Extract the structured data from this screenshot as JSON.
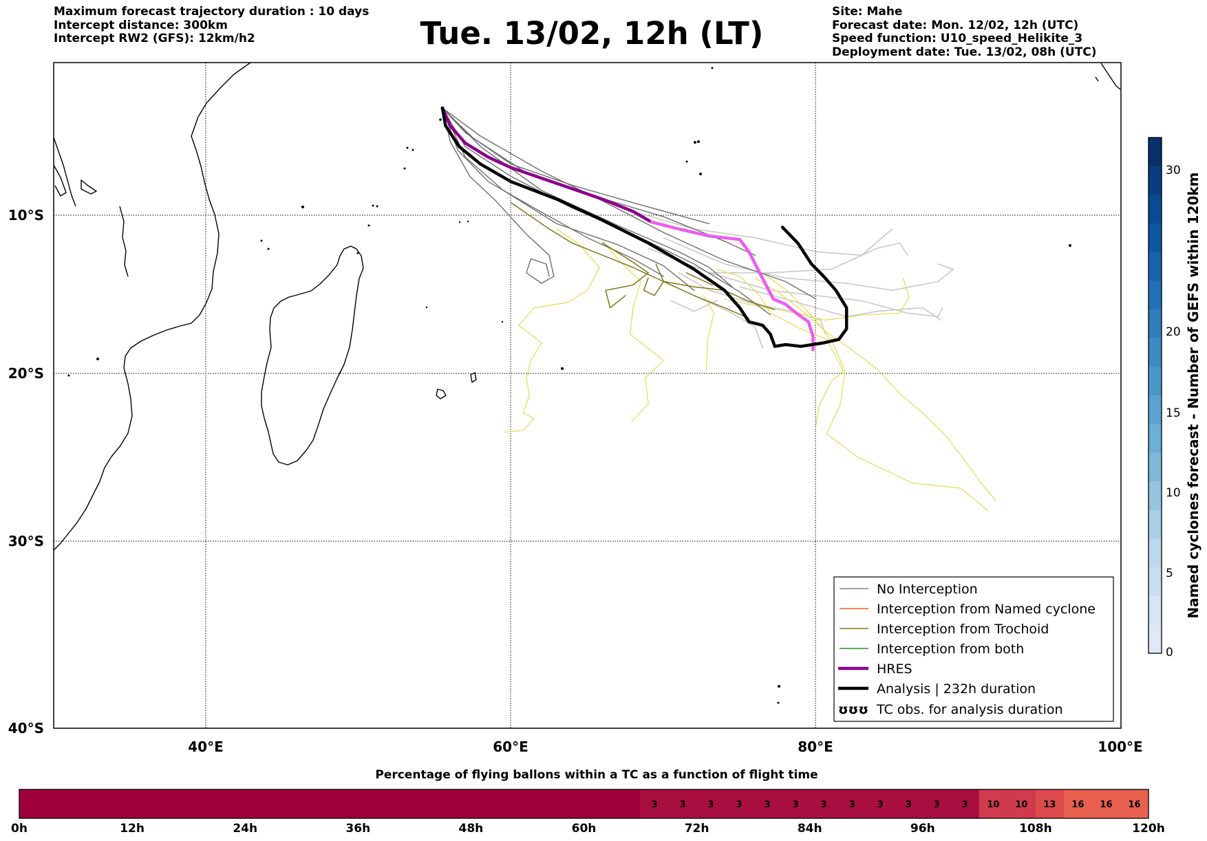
{
  "header": {
    "left_lines": [
      "Maximum forecast trajectory duration : 10 days",
      "Intercept distance: 300km",
      "Intercept RW2 (GFS):  12km/h2"
    ],
    "title": "Tue. 13/02, 12h (LT)",
    "right_lines": [
      "Site: Mahe",
      "Forecast date: Mon. 12/02, 12h (UTC)",
      "Speed function: U10_speed_Helikite_3",
      "Deployment date: Tue. 13/02, 08h (UTC)"
    ]
  },
  "map": {
    "lon_range": [
      30,
      100
    ],
    "lat_range": [
      -40,
      -2
    ],
    "lon_ticks": [
      "40°E",
      "60°E",
      "80°E",
      "100°E"
    ],
    "lat_ticks": [
      "10°S",
      "20°S",
      "30°S",
      "40°S"
    ],
    "site": {
      "name": "Mahe",
      "lon": 55.5,
      "lat": -4.6
    }
  },
  "legend": {
    "entries": [
      {
        "label": "No Interception",
        "color": "#808080",
        "style": "line-thin"
      },
      {
        "label": "Interception from Named cyclone",
        "color": "#ff5a1e",
        "style": "line-thin"
      },
      {
        "label": "Interception from Trochoid",
        "color": "#7d7a14",
        "style": "line-thin"
      },
      {
        "label": "Interception from both",
        "color": "#1e9a1e",
        "style": "line-thin"
      },
      {
        "label": "HRES",
        "color": "#8b008b",
        "style": "line-thick"
      },
      {
        "label": "Analysis | 232h duration",
        "color": "#000000",
        "style": "line-thick"
      },
      {
        "label": "TC obs. for analysis duration",
        "color": "#000000",
        "style": "symbols",
        "symbol": "ʊʊʊ"
      }
    ]
  },
  "colorbar_right": {
    "label": "Named cyclones forecast - Number of GEFS within 120km",
    "ticks": [
      "0",
      "5",
      "10",
      "15",
      "20",
      "30"
    ],
    "colors_top_to_bottom": [
      "#08306b",
      "#083d7f",
      "#084b93",
      "#0c58a1",
      "#1764ab",
      "#2171b5",
      "#2e7ebc",
      "#3a8bc2",
      "#4997c9",
      "#5ba3d0",
      "#6baed6",
      "#7fb9da",
      "#94c4df",
      "#a9cfe5",
      "#bdd7ec",
      "#cadef0",
      "#d6e6f4",
      "#dde9f5"
    ]
  },
  "colorbar_bottom": {
    "title": "Percentage of flying ballons within a TC as a function of flight time",
    "ticks": [
      "0h",
      "12h",
      "24h",
      "36h",
      "48h",
      "60h",
      "72h",
      "84h",
      "96h",
      "108h",
      "120h"
    ],
    "segment_values": [
      "",
      "",
      "",
      "",
      "",
      "",
      "",
      "",
      "",
      "",
      "",
      "",
      "",
      "",
      "",
      "",
      "",
      "",
      "",
      "",
      "",
      "",
      "3",
      "3",
      "3",
      "3",
      "3",
      "3",
      "3",
      "3",
      "3",
      "3",
      "3",
      "3",
      "10",
      "10",
      "13",
      "16",
      "16",
      "16"
    ],
    "color_scale": {
      "0": "#9e003c",
      "3": "#a90f41",
      "10": "#cf3b4c",
      "13": "#dc4a4d",
      "16": "#e9604f"
    }
  },
  "chart_data": {
    "type": "map-trajectories",
    "analysis_track": [
      [
        55.5,
        -4.6
      ],
      [
        55.7,
        -5.6
      ],
      [
        56.6,
        -6.8
      ],
      [
        58,
        -7.8
      ],
      [
        60,
        -8.8
      ],
      [
        63,
        -9.8
      ],
      [
        66,
        -11
      ],
      [
        69,
        -12.3
      ],
      [
        72,
        -13.8
      ],
      [
        74,
        -15
      ],
      [
        75,
        -16
      ],
      [
        75.6,
        -16.8
      ],
      [
        76.5,
        -17
      ],
      [
        77,
        -17.5
      ],
      [
        77.3,
        -18.2
      ],
      [
        78,
        -18.1
      ],
      [
        79,
        -18.2
      ],
      [
        80.5,
        -18
      ],
      [
        81.5,
        -17.8
      ],
      [
        82,
        -17.2
      ],
      [
        82,
        -16
      ],
      [
        81.3,
        -15
      ],
      [
        80.5,
        -14.2
      ],
      [
        79.7,
        -13.5
      ],
      [
        78.8,
        -12.3
      ],
      [
        77.8,
        -11.4
      ]
    ],
    "hres_track": [
      [
        55.5,
        -4.6
      ],
      [
        56,
        -5.6
      ],
      [
        57,
        -6.6
      ],
      [
        58.5,
        -7.4
      ],
      [
        60,
        -8
      ],
      [
        62,
        -8.6
      ],
      [
        64,
        -9.2
      ],
      [
        66,
        -9.8
      ],
      [
        68,
        -10.5
      ],
      [
        69.2,
        -11.1
      ],
      [
        71,
        -11.5
      ],
      [
        73,
        -11.9
      ],
      [
        75,
        -12.1
      ],
      [
        75.6,
        -12.8
      ],
      [
        76.3,
        -14
      ],
      [
        77.2,
        -15.5
      ],
      [
        78,
        -15.8
      ],
      [
        78.7,
        -16.3
      ],
      [
        79.5,
        -16.8
      ],
      [
        79.8,
        -17.6
      ],
      [
        79.8,
        -18.4
      ]
    ],
    "no_interception_tracks": [
      [
        [
          55.5,
          -4.6
        ],
        [
          57,
          -6
        ],
        [
          60,
          -7.8
        ],
        [
          64,
          -9
        ],
        [
          68,
          -10
        ],
        [
          73,
          -11.2
        ]
      ],
      [
        [
          55.5,
          -4.6
        ],
        [
          57.5,
          -6.3
        ],
        [
          61,
          -8.3
        ],
        [
          65,
          -9.5
        ],
        [
          70,
          -10.8
        ],
        [
          74,
          -12.2
        ],
        [
          76,
          -13
        ]
      ],
      [
        [
          55.5,
          -4.6
        ],
        [
          58,
          -6.8
        ],
        [
          62,
          -9.3
        ],
        [
          67,
          -11.3
        ],
        [
          71,
          -12.8
        ],
        [
          73,
          -13.7
        ],
        [
          74.5,
          -14.8
        ]
      ],
      [
        [
          55.5,
          -4.6
        ],
        [
          57,
          -7.4
        ],
        [
          59.5,
          -9.3
        ],
        [
          63,
          -11.2
        ],
        [
          67,
          -12.4
        ],
        [
          70,
          -13.6
        ],
        [
          72,
          -15
        ]
      ],
      [
        [
          55.5,
          -4.6
        ],
        [
          56.5,
          -7
        ],
        [
          58.5,
          -8.8
        ],
        [
          61.5,
          -10.3
        ],
        [
          65,
          -12
        ],
        [
          68,
          -13.2
        ],
        [
          70,
          -14.2
        ]
      ],
      [
        [
          55.5,
          -4.6
        ],
        [
          56,
          -6.5
        ],
        [
          57.3,
          -8.5
        ],
        [
          59,
          -9.9
        ],
        [
          61,
          -11.8
        ],
        [
          62.5,
          -13
        ],
        [
          62.8,
          -14.2
        ],
        [
          62,
          -14.6
        ],
        [
          61,
          -14
        ],
        [
          61.3,
          -13.2
        ],
        [
          62.3,
          -13.5
        ],
        [
          62.5,
          -14.2
        ]
      ],
      [
        [
          55.5,
          -4.6
        ],
        [
          58,
          -6.2
        ],
        [
          62,
          -8.2
        ],
        [
          66,
          -9.9
        ],
        [
          70,
          -11.7
        ],
        [
          74,
          -13.3
        ],
        [
          78,
          -14.5
        ],
        [
          80,
          -15.5
        ]
      ],
      [
        [
          55.5,
          -4.6
        ],
        [
          57,
          -6.8
        ],
        [
          60,
          -8.5
        ],
        [
          64,
          -10.3
        ],
        [
          68,
          -11.8
        ],
        [
          72,
          -13.5
        ],
        [
          75,
          -15.1
        ],
        [
          77,
          -16.4
        ]
      ]
    ],
    "no_interception_light_tracks": [
      [
        [
          68,
          -10.5
        ],
        [
          72,
          -11.5
        ],
        [
          76,
          -12
        ],
        [
          80,
          -12.8
        ],
        [
          83,
          -13
        ],
        [
          85,
          -11.5
        ]
      ],
      [
        [
          70,
          -12
        ],
        [
          74,
          -13.5
        ],
        [
          78,
          -14.3
        ],
        [
          82,
          -14.6
        ],
        [
          85,
          -15
        ],
        [
          88,
          -14.5
        ],
        [
          89,
          -13.8
        ],
        [
          88,
          -13.5
        ]
      ],
      [
        [
          69,
          -12.6
        ],
        [
          73,
          -14
        ],
        [
          77,
          -15
        ],
        [
          80,
          -15.3
        ],
        [
          83,
          -15.6
        ],
        [
          86,
          -16.3
        ],
        [
          88,
          -16.5
        ],
        [
          88.3,
          -16
        ]
      ],
      [
        [
          71,
          -14
        ],
        [
          73,
          -15
        ],
        [
          76,
          -15.8
        ],
        [
          78.5,
          -16.2
        ],
        [
          80.3,
          -16.7
        ],
        [
          80.6,
          -17.5
        ]
      ],
      [
        [
          73,
          -14
        ],
        [
          77,
          -14
        ],
        [
          81,
          -13.8
        ],
        [
          84,
          -12.6
        ],
        [
          85.5,
          -12.3
        ],
        [
          86,
          -13
        ]
      ],
      [
        [
          72,
          -15.3
        ],
        [
          74.5,
          -16.3
        ],
        [
          76,
          -17.1
        ],
        [
          76.5,
          -18.3
        ]
      ],
      [
        [
          70.5,
          -15.6
        ],
        [
          72,
          -16.2
        ],
        [
          73.5,
          -15.6
        ]
      ],
      [
        [
          75,
          -14.8
        ],
        [
          78,
          -15.5
        ],
        [
          80,
          -16
        ],
        [
          82,
          -16.5
        ],
        [
          84,
          -16.2
        ],
        [
          87,
          -16
        ],
        [
          88.2,
          -16.7
        ]
      ]
    ],
    "trochoid_tracks": [
      [
        [
          60,
          -10
        ],
        [
          62.5,
          -11.5
        ],
        [
          64,
          -12.3
        ],
        [
          66,
          -13
        ],
        [
          68,
          -13.7
        ],
        [
          70,
          -14.5
        ],
        [
          72,
          -15.3
        ],
        [
          74,
          -16
        ],
        [
          75.6,
          -16.6
        ]
      ],
      [
        [
          66,
          -12.3
        ],
        [
          68,
          -13.4
        ],
        [
          69,
          -14
        ],
        [
          68,
          -14.7
        ],
        [
          66.2,
          -15
        ],
        [
          66.5,
          -16
        ],
        [
          67.5,
          -15.3
        ]
      ],
      [
        [
          69.5,
          -13.5
        ],
        [
          70,
          -14.5
        ],
        [
          69.4,
          -15.3
        ],
        [
          68.7,
          -15
        ],
        [
          69,
          -14.3
        ]
      ],
      [
        [
          70,
          -14.5
        ],
        [
          72,
          -14.8
        ],
        [
          74,
          -15
        ],
        [
          75.5,
          -15.6
        ],
        [
          77.3,
          -16.1
        ]
      ],
      [
        [
          71.5,
          -14
        ],
        [
          73.2,
          -14.7
        ]
      ]
    ],
    "yellow_tracks": [
      [
        [
          63,
          -11.5
        ],
        [
          64.5,
          -12.4
        ],
        [
          65.8,
          -13.7
        ],
        [
          65,
          -15
        ],
        [
          63.7,
          -15.7
        ],
        [
          61.5,
          -16
        ],
        [
          60.5,
          -17
        ],
        [
          62,
          -18
        ],
        [
          61.3,
          -19
        ],
        [
          61,
          -20
        ],
        [
          61.2,
          -21
        ],
        [
          60.8,
          -22
        ],
        [
          61.5,
          -22.3
        ],
        [
          60.8,
          -23
        ],
        [
          59.6,
          -23.1
        ]
      ],
      [
        [
          66,
          -12.2
        ],
        [
          67.2,
          -13.4
        ],
        [
          68.5,
          -14.5
        ],
        [
          68,
          -16
        ],
        [
          67.8,
          -17.5
        ],
        [
          70,
          -19
        ],
        [
          68.8,
          -20
        ],
        [
          69,
          -21.5
        ],
        [
          67.9,
          -22.5
        ]
      ],
      [
        [
          73.5,
          -13.8
        ],
        [
          75,
          -14.2
        ],
        [
          76.3,
          -15.3
        ],
        [
          77,
          -16.3
        ],
        [
          79,
          -17.2
        ],
        [
          80.7,
          -17.8
        ],
        [
          81.8,
          -19.6
        ],
        [
          81,
          -20.2
        ],
        [
          80.2,
          -21.6
        ],
        [
          80,
          -22.7
        ]
      ],
      [
        [
          76,
          -14.3
        ],
        [
          77.5,
          -15.1
        ],
        [
          79,
          -16.1
        ],
        [
          80.7,
          -17.4
        ],
        [
          82.2,
          -18.3
        ],
        [
          84,
          -19.5
        ],
        [
          85.5,
          -20.9
        ],
        [
          87,
          -22
        ],
        [
          88.5,
          -23.3
        ],
        [
          90,
          -25
        ],
        [
          91,
          -26.2
        ],
        [
          91.8,
          -27
        ]
      ],
      [
        [
          76.5,
          -14
        ],
        [
          78.2,
          -15.1
        ],
        [
          80,
          -16.7
        ],
        [
          81.1,
          -18
        ],
        [
          81.9,
          -19.6
        ],
        [
          81.6,
          -21.5
        ],
        [
          80.7,
          -23.2
        ],
        [
          82.7,
          -24.5
        ],
        [
          86.3,
          -26
        ],
        [
          89.5,
          -26.3
        ],
        [
          91.3,
          -27.6
        ]
      ],
      [
        [
          74,
          -15.5
        ],
        [
          76.7,
          -16
        ],
        [
          78.7,
          -16.3
        ],
        [
          80.6,
          -16.7
        ],
        [
          83.2,
          -16.4
        ],
        [
          85.5,
          -16.3
        ],
        [
          86.1,
          -15.4
        ],
        [
          85.7,
          -14.3
        ]
      ],
      [
        [
          72.6,
          -15.3
        ],
        [
          73.3,
          -16.3
        ],
        [
          72.9,
          -17.8
        ],
        [
          72.8,
          -19.6
        ]
      ]
    ]
  }
}
